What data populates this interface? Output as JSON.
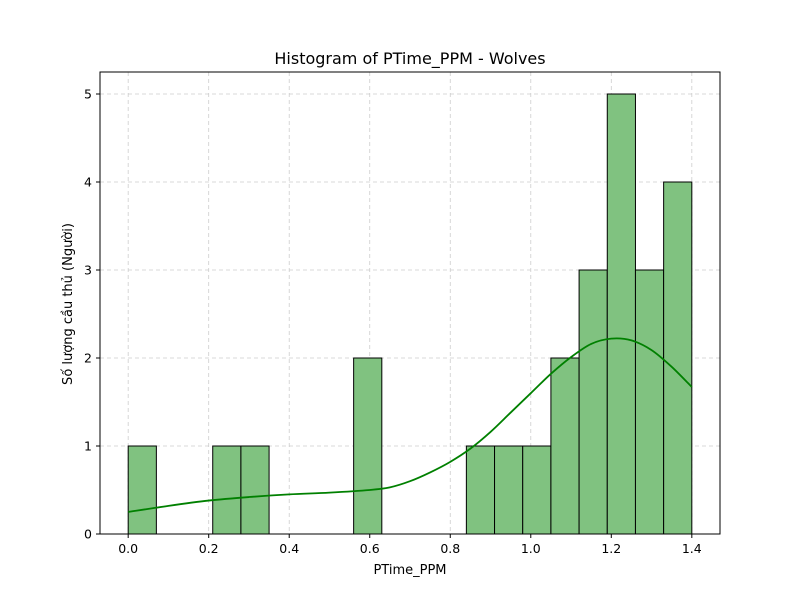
{
  "chart_data": {
    "type": "bar",
    "title": "Histogram of PTime_PPM - Wolves",
    "xlabel": "PTime_PPM",
    "ylabel": "Số lượng cầu thủ (Người)",
    "xlim": [
      -0.07,
      1.47
    ],
    "ylim": [
      0,
      5.25
    ],
    "x_ticks": [
      0.0,
      0.2,
      0.4,
      0.6,
      0.8,
      1.0,
      1.2,
      1.4
    ],
    "x_tick_labels": [
      "0.0",
      "0.2",
      "0.4",
      "0.6",
      "0.8",
      "1.0",
      "1.2",
      "1.4"
    ],
    "y_ticks": [
      0,
      1,
      2,
      3,
      4,
      5
    ],
    "y_tick_labels": [
      "0",
      "1",
      "2",
      "3",
      "4",
      "5"
    ],
    "grid": true,
    "bar_color": "#80c280",
    "bar_edge_color": "#000000",
    "kde_color": "#008000",
    "bins": [
      {
        "x0": 0.0,
        "x1": 0.07,
        "count": 1
      },
      {
        "x0": 0.07,
        "x1": 0.14,
        "count": 0
      },
      {
        "x0": 0.14,
        "x1": 0.21,
        "count": 0
      },
      {
        "x0": 0.21,
        "x1": 0.28,
        "count": 1
      },
      {
        "x0": 0.28,
        "x1": 0.35,
        "count": 1
      },
      {
        "x0": 0.35,
        "x1": 0.42,
        "count": 0
      },
      {
        "x0": 0.42,
        "x1": 0.49,
        "count": 0
      },
      {
        "x0": 0.49,
        "x1": 0.56,
        "count": 0
      },
      {
        "x0": 0.56,
        "x1": 0.63,
        "count": 2
      },
      {
        "x0": 0.63,
        "x1": 0.7,
        "count": 0
      },
      {
        "x0": 0.7,
        "x1": 0.77,
        "count": 0
      },
      {
        "x0": 0.77,
        "x1": 0.84,
        "count": 0
      },
      {
        "x0": 0.84,
        "x1": 0.91,
        "count": 1
      },
      {
        "x0": 0.91,
        "x1": 0.98,
        "count": 1
      },
      {
        "x0": 0.98,
        "x1": 1.05,
        "count": 1
      },
      {
        "x0": 1.05,
        "x1": 1.12,
        "count": 2
      },
      {
        "x0": 1.12,
        "x1": 1.19,
        "count": 3
      },
      {
        "x0": 1.19,
        "x1": 1.26,
        "count": 5
      },
      {
        "x0": 1.26,
        "x1": 1.33,
        "count": 3
      },
      {
        "x0": 1.33,
        "x1": 1.4,
        "count": 4
      }
    ],
    "kde": {
      "x": [
        0.0,
        0.1,
        0.2,
        0.3,
        0.4,
        0.5,
        0.6,
        0.65,
        0.7,
        0.75,
        0.8,
        0.85,
        0.9,
        0.95,
        1.0,
        1.05,
        1.1,
        1.15,
        1.2,
        1.25,
        1.3,
        1.35,
        1.4
      ],
      "y": [
        0.25,
        0.32,
        0.38,
        0.42,
        0.45,
        0.47,
        0.5,
        0.53,
        0.6,
        0.7,
        0.82,
        0.97,
        1.16,
        1.38,
        1.6,
        1.82,
        2.01,
        2.16,
        2.22,
        2.2,
        2.09,
        1.9,
        1.67
      ]
    }
  }
}
